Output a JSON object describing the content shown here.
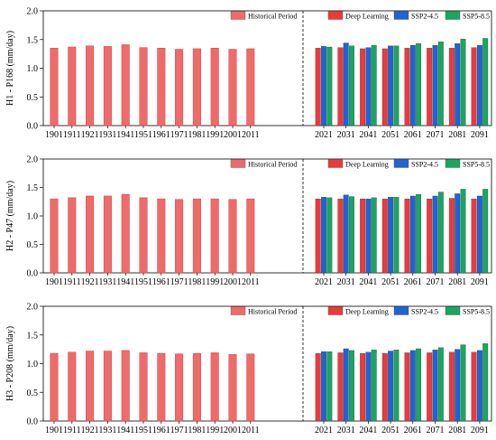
{
  "chart_data": [
    {
      "type": "bar",
      "ylabel": "H1 - P168 (mm/day)",
      "ylim": [
        0,
        2.0
      ],
      "yticks": [
        0.0,
        0.5,
        1.0,
        1.5,
        2.0
      ],
      "ytick_labels": [
        "0.0",
        "0.5",
        "1.0",
        "1.5",
        "2.0"
      ],
      "historical": {
        "name": "Historical Period",
        "categories": [
          "1901",
          "1911",
          "1921",
          "1931",
          "1941",
          "1951",
          "1961",
          "1971",
          "1981",
          "1991",
          "2001",
          "2011"
        ],
        "values": [
          1.35,
          1.37,
          1.39,
          1.38,
          1.41,
          1.36,
          1.35,
          1.33,
          1.34,
          1.35,
          1.33,
          1.34
        ]
      },
      "future": {
        "categories": [
          "2021",
          "2031",
          "2041",
          "2051",
          "2061",
          "2071",
          "2081",
          "2091"
        ],
        "series": [
          {
            "name": "Deep Learning",
            "values": [
              1.35,
              1.36,
              1.34,
              1.34,
              1.35,
              1.35,
              1.35,
              1.36
            ]
          },
          {
            "name": "SSP2-4.5",
            "values": [
              1.38,
              1.44,
              1.36,
              1.39,
              1.4,
              1.4,
              1.43,
              1.4
            ]
          },
          {
            "name": "SSP5-8.5",
            "values": [
              1.37,
              1.39,
              1.4,
              1.39,
              1.43,
              1.46,
              1.51,
              1.52
            ]
          }
        ]
      }
    },
    {
      "type": "bar",
      "ylabel": "H2 - P47 (mm/day)",
      "ylim": [
        0,
        2.0
      ],
      "yticks": [
        0.0,
        0.5,
        1.0,
        1.5,
        2.0
      ],
      "ytick_labels": [
        "0.0",
        "0.5",
        "1.0",
        "1.5",
        "2.0"
      ],
      "historical": {
        "name": "Historical Period",
        "categories": [
          "1901",
          "1911",
          "1921",
          "1931",
          "1941",
          "1951",
          "1961",
          "1971",
          "1981",
          "1991",
          "2001",
          "2011"
        ],
        "values": [
          1.3,
          1.32,
          1.35,
          1.35,
          1.38,
          1.32,
          1.3,
          1.29,
          1.3,
          1.3,
          1.29,
          1.3
        ]
      },
      "future": {
        "categories": [
          "2021",
          "2031",
          "2041",
          "2051",
          "2061",
          "2071",
          "2081",
          "2091"
        ],
        "series": [
          {
            "name": "Deep Learning",
            "values": [
              1.3,
              1.3,
              1.3,
              1.3,
              1.3,
              1.3,
              1.31,
              1.3
            ]
          },
          {
            "name": "SSP2-4.5",
            "values": [
              1.33,
              1.37,
              1.3,
              1.33,
              1.35,
              1.35,
              1.39,
              1.35
            ]
          },
          {
            "name": "SSP5-8.5",
            "values": [
              1.32,
              1.34,
              1.32,
              1.33,
              1.38,
              1.42,
              1.47,
              1.47
            ]
          }
        ]
      }
    },
    {
      "type": "bar",
      "ylabel": "H3 - P208 (mm/day)",
      "ylim": [
        0,
        2.0
      ],
      "yticks": [
        0.0,
        0.5,
        1.0,
        1.5,
        2.0
      ],
      "ytick_labels": [
        "0.0",
        "0.5",
        "1.0",
        "1.5",
        "2.0"
      ],
      "historical": {
        "name": "Historical Period",
        "categories": [
          "1901",
          "1911",
          "1921",
          "1931",
          "1941",
          "1951",
          "1961",
          "1971",
          "1981",
          "1991",
          "2001",
          "2011"
        ],
        "values": [
          1.18,
          1.2,
          1.22,
          1.22,
          1.23,
          1.19,
          1.18,
          1.17,
          1.18,
          1.19,
          1.16,
          1.17
        ]
      },
      "future": {
        "categories": [
          "2021",
          "2031",
          "2041",
          "2051",
          "2061",
          "2071",
          "2081",
          "2091"
        ],
        "series": [
          {
            "name": "Deep Learning",
            "values": [
              1.18,
              1.19,
              1.18,
              1.18,
              1.19,
              1.19,
              1.2,
              1.2
            ]
          },
          {
            "name": "SSP2-4.5",
            "values": [
              1.21,
              1.26,
              1.2,
              1.22,
              1.23,
              1.24,
              1.25,
              1.23
            ]
          },
          {
            "name": "SSP5-8.5",
            "values": [
              1.21,
              1.23,
              1.24,
              1.24,
              1.26,
              1.28,
              1.33,
              1.35
            ]
          }
        ]
      }
    }
  ],
  "colors": {
    "historical": "#f06a6a",
    "historical_border": "#c84848",
    "deep_learning": "#f03838",
    "ssp245": "#1f63d6",
    "ssp585": "#17a760"
  }
}
